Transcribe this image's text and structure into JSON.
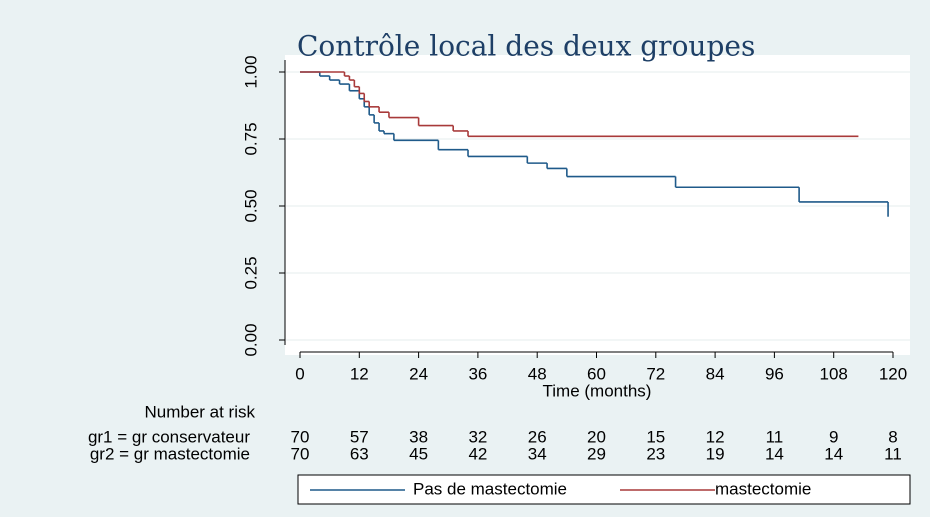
{
  "chart_data": {
    "type": "step",
    "title": "Contrôle local des deux groupes",
    "x_label": "Time (months)",
    "xlim": [
      0,
      120
    ],
    "xticks": [
      0,
      12,
      24,
      36,
      48,
      60,
      72,
      84,
      96,
      108,
      120
    ],
    "ylim": [
      0,
      1
    ],
    "yticks": [
      {
        "value": 0,
        "label": "0.00"
      },
      {
        "value": 0.25,
        "label": "0.25"
      },
      {
        "value": 0.5,
        "label": "0.50"
      },
      {
        "value": 0.75,
        "label": "0.75"
      },
      {
        "value": 1,
        "label": "1.00"
      }
    ],
    "grid": true,
    "series": [
      {
        "name": "Pas de mastectomie",
        "color": "#1f5a8a",
        "x": [
          0,
          4,
          6,
          8,
          10,
          12,
          13,
          14,
          15,
          16,
          17,
          19,
          28,
          34,
          46,
          50,
          54,
          76,
          101,
          119
        ],
        "values": [
          1.0,
          0.985,
          0.97,
          0.955,
          0.93,
          0.9,
          0.87,
          0.84,
          0.81,
          0.78,
          0.77,
          0.745,
          0.71,
          0.685,
          0.66,
          0.64,
          0.61,
          0.57,
          0.515,
          0.46
        ]
      },
      {
        "name": "mastectomie",
        "color": "#a83a3a",
        "x": [
          0,
          9,
          10,
          11,
          12,
          13,
          14,
          16,
          18,
          24,
          31,
          34,
          113
        ],
        "values": [
          1.0,
          0.985,
          0.97,
          0.945,
          0.92,
          0.89,
          0.87,
          0.85,
          0.83,
          0.8,
          0.78,
          0.76,
          0.76
        ]
      }
    ],
    "risk_table": {
      "header": "Number at risk",
      "rows": [
        {
          "label": "gr1 = gr conservateur",
          "values": [
            70,
            57,
            38,
            32,
            26,
            20,
            15,
            12,
            11,
            9,
            8
          ]
        },
        {
          "label": "gr2 = gr mastectomie",
          "values": [
            70,
            63,
            45,
            42,
            34,
            29,
            23,
            19,
            14,
            14,
            11
          ]
        }
      ]
    }
  }
}
